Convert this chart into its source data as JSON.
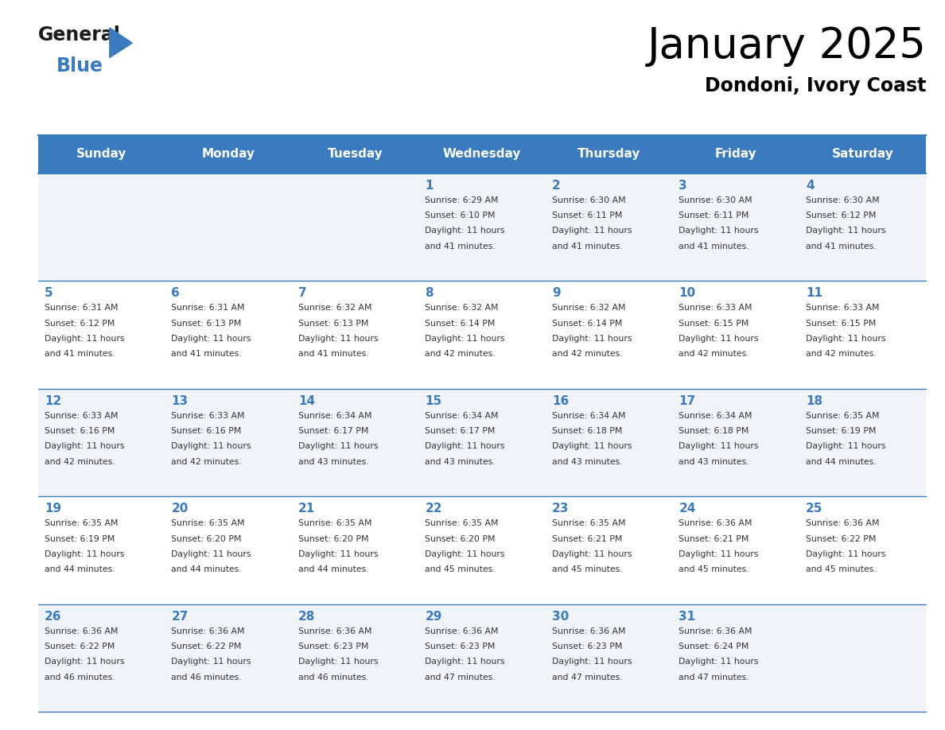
{
  "title": "January 2025",
  "subtitle": "Dondoni, Ivory Coast",
  "header_bg_color": "#3a7bbf",
  "header_text_color": "#ffffff",
  "cell_bg_even": "#f0f4f8",
  "cell_bg_odd": "#ffffff",
  "grid_line_color": "#3a7bbf",
  "day_number_color": "#3a7bbf",
  "text_color": "#333333",
  "days_of_week": [
    "Sunday",
    "Monday",
    "Tuesday",
    "Wednesday",
    "Thursday",
    "Friday",
    "Saturday"
  ],
  "calendar": [
    [
      null,
      null,
      null,
      {
        "day": 1,
        "sunrise": "6:29 AM",
        "sunset": "6:10 PM",
        "daylight": "11 hours and 41 minutes."
      },
      {
        "day": 2,
        "sunrise": "6:30 AM",
        "sunset": "6:11 PM",
        "daylight": "11 hours and 41 minutes."
      },
      {
        "day": 3,
        "sunrise": "6:30 AM",
        "sunset": "6:11 PM",
        "daylight": "11 hours and 41 minutes."
      },
      {
        "day": 4,
        "sunrise": "6:30 AM",
        "sunset": "6:12 PM",
        "daylight": "11 hours and 41 minutes."
      }
    ],
    [
      {
        "day": 5,
        "sunrise": "6:31 AM",
        "sunset": "6:12 PM",
        "daylight": "11 hours and 41 minutes."
      },
      {
        "day": 6,
        "sunrise": "6:31 AM",
        "sunset": "6:13 PM",
        "daylight": "11 hours and 41 minutes."
      },
      {
        "day": 7,
        "sunrise": "6:32 AM",
        "sunset": "6:13 PM",
        "daylight": "11 hours and 41 minutes."
      },
      {
        "day": 8,
        "sunrise": "6:32 AM",
        "sunset": "6:14 PM",
        "daylight": "11 hours and 42 minutes."
      },
      {
        "day": 9,
        "sunrise": "6:32 AM",
        "sunset": "6:14 PM",
        "daylight": "11 hours and 42 minutes."
      },
      {
        "day": 10,
        "sunrise": "6:33 AM",
        "sunset": "6:15 PM",
        "daylight": "11 hours and 42 minutes."
      },
      {
        "day": 11,
        "sunrise": "6:33 AM",
        "sunset": "6:15 PM",
        "daylight": "11 hours and 42 minutes."
      }
    ],
    [
      {
        "day": 12,
        "sunrise": "6:33 AM",
        "sunset": "6:16 PM",
        "daylight": "11 hours and 42 minutes."
      },
      {
        "day": 13,
        "sunrise": "6:33 AM",
        "sunset": "6:16 PM",
        "daylight": "11 hours and 42 minutes."
      },
      {
        "day": 14,
        "sunrise": "6:34 AM",
        "sunset": "6:17 PM",
        "daylight": "11 hours and 43 minutes."
      },
      {
        "day": 15,
        "sunrise": "6:34 AM",
        "sunset": "6:17 PM",
        "daylight": "11 hours and 43 minutes."
      },
      {
        "day": 16,
        "sunrise": "6:34 AM",
        "sunset": "6:18 PM",
        "daylight": "11 hours and 43 minutes."
      },
      {
        "day": 17,
        "sunrise": "6:34 AM",
        "sunset": "6:18 PM",
        "daylight": "11 hours and 43 minutes."
      },
      {
        "day": 18,
        "sunrise": "6:35 AM",
        "sunset": "6:19 PM",
        "daylight": "11 hours and 44 minutes."
      }
    ],
    [
      {
        "day": 19,
        "sunrise": "6:35 AM",
        "sunset": "6:19 PM",
        "daylight": "11 hours and 44 minutes."
      },
      {
        "day": 20,
        "sunrise": "6:35 AM",
        "sunset": "6:20 PM",
        "daylight": "11 hours and 44 minutes."
      },
      {
        "day": 21,
        "sunrise": "6:35 AM",
        "sunset": "6:20 PM",
        "daylight": "11 hours and 44 minutes."
      },
      {
        "day": 22,
        "sunrise": "6:35 AM",
        "sunset": "6:20 PM",
        "daylight": "11 hours and 45 minutes."
      },
      {
        "day": 23,
        "sunrise": "6:35 AM",
        "sunset": "6:21 PM",
        "daylight": "11 hours and 45 minutes."
      },
      {
        "day": 24,
        "sunrise": "6:36 AM",
        "sunset": "6:21 PM",
        "daylight": "11 hours and 45 minutes."
      },
      {
        "day": 25,
        "sunrise": "6:36 AM",
        "sunset": "6:22 PM",
        "daylight": "11 hours and 45 minutes."
      }
    ],
    [
      {
        "day": 26,
        "sunrise": "6:36 AM",
        "sunset": "6:22 PM",
        "daylight": "11 hours and 46 minutes."
      },
      {
        "day": 27,
        "sunrise": "6:36 AM",
        "sunset": "6:22 PM",
        "daylight": "11 hours and 46 minutes."
      },
      {
        "day": 28,
        "sunrise": "6:36 AM",
        "sunset": "6:23 PM",
        "daylight": "11 hours and 46 minutes."
      },
      {
        "day": 29,
        "sunrise": "6:36 AM",
        "sunset": "6:23 PM",
        "daylight": "11 hours and 47 minutes."
      },
      {
        "day": 30,
        "sunrise": "6:36 AM",
        "sunset": "6:23 PM",
        "daylight": "11 hours and 47 minutes."
      },
      {
        "day": 31,
        "sunrise": "6:36 AM",
        "sunset": "6:24 PM",
        "daylight": "11 hours and 47 minutes."
      },
      null
    ]
  ],
  "logo_triangle_color": "#3a7bbf"
}
